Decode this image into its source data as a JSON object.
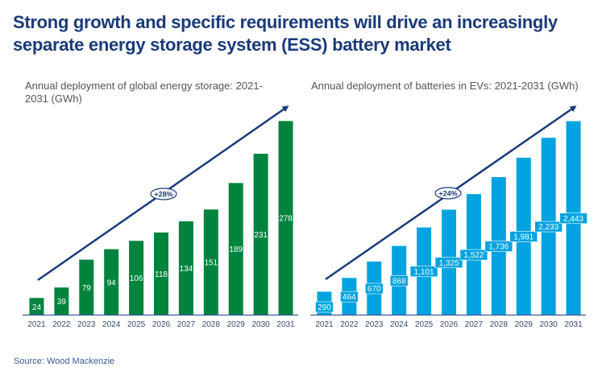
{
  "title": "Strong growth and specific requirements will drive an increasingly separate energy storage system (ESS) battery market",
  "source": "Source: Wood Mackenzie",
  "colors": {
    "title": "#1a3a7a",
    "arrow": "#1a3a7a",
    "axis": "#3a5a9a",
    "ess_bar": "#00843d",
    "ev_bar": "#00a3e0",
    "label_text": "#ffffff",
    "tick_text": "#3a4a6a"
  },
  "chart_data": [
    {
      "type": "bar",
      "title": "Annual deployment of global energy storage: 2021-2031 (GWh)",
      "xlabel": "",
      "ylabel": "GWh",
      "categories": [
        "2021",
        "2022",
        "2023",
        "2024",
        "2025",
        "2026",
        "2027",
        "2028",
        "2029",
        "2030",
        "2031"
      ],
      "values": [
        24,
        39,
        79,
        94,
        106,
        118,
        134,
        151,
        189,
        231,
        278
      ],
      "value_labels": [
        "24",
        "39",
        "79",
        "94",
        "106",
        "118",
        "134",
        "151",
        "189",
        "231",
        "278"
      ],
      "ylim": [
        0,
        290
      ],
      "grid": false,
      "annotation": "+28%",
      "bar_color": "#00843d"
    },
    {
      "type": "bar",
      "title": "Annual deployment of batteries in EVs: 2021-2031 (GWh)",
      "xlabel": "",
      "ylabel": "GWh",
      "categories": [
        "2021",
        "2022",
        "2023",
        "2024",
        "2025",
        "2026",
        "2027",
        "2028",
        "2029",
        "2030",
        "2031"
      ],
      "values": [
        290,
        464,
        670,
        868,
        1101,
        1325,
        1522,
        1736,
        1981,
        2233,
        2443
      ],
      "value_labels": [
        "290",
        "464",
        "670",
        "868",
        "1,101",
        "1,325",
        "1,522",
        "1,736",
        "1,981",
        "2,233",
        "2,443"
      ],
      "ylim": [
        0,
        2550
      ],
      "grid": false,
      "annotation": "+24%",
      "bar_color": "#00a3e0"
    }
  ]
}
